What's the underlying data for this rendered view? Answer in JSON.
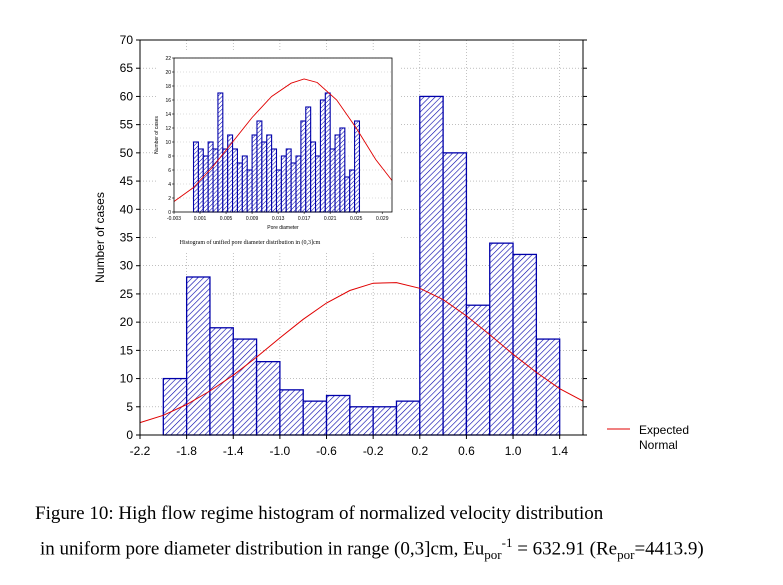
{
  "chart_data": [
    {
      "type": "bar",
      "role": "main-histogram",
      "x_tick_labels": [
        "-2.2",
        "-1.8",
        "-1.4",
        "-1.0",
        "-0.6",
        "-0.2",
        "0.2",
        "0.6",
        "1.0",
        "1.4"
      ],
      "x_ticks": [
        -2.2,
        -1.8,
        -1.4,
        -1.0,
        -0.6,
        -0.2,
        0.2,
        0.6,
        1.0,
        1.4
      ],
      "bin_edges": [
        -2.0,
        -1.8,
        -1.6,
        -1.4,
        -1.2,
        -1.0,
        -0.8,
        -0.6,
        -0.4,
        -0.2,
        0.0,
        0.2,
        0.4,
        0.6,
        0.8,
        1.0,
        1.2,
        1.4
      ],
      "values": [
        10,
        28,
        19,
        17,
        13,
        8,
        6,
        7,
        5,
        5,
        6,
        60,
        50,
        23,
        34,
        32,
        17
      ],
      "xlim": [
        -2.2,
        1.6
      ],
      "ylim": [
        0,
        70
      ],
      "y_ticks": [
        0,
        5,
        10,
        15,
        20,
        25,
        30,
        35,
        40,
        45,
        50,
        55,
        60,
        65,
        70
      ],
      "ylabel": "Number of cases",
      "grid": true,
      "normal_curve": {
        "x": [
          -2.2,
          -2.0,
          -1.8,
          -1.6,
          -1.4,
          -1.2,
          -1.0,
          -0.8,
          -0.6,
          -0.4,
          -0.2,
          0.0,
          0.2,
          0.4,
          0.6,
          0.8,
          1.0,
          1.2,
          1.4,
          1.6
        ],
        "y": [
          2.2,
          3.5,
          5.4,
          7.8,
          10.6,
          13.8,
          17.2,
          20.5,
          23.4,
          25.6,
          26.9,
          27.0,
          26.0,
          24.0,
          21.1,
          17.8,
          14.3,
          11.1,
          8.2,
          6.0
        ]
      },
      "legend": {
        "label_line1": "Expected",
        "label_line2": "Normal",
        "position": "right",
        "color": "#e00000"
      }
    },
    {
      "type": "bar",
      "role": "inset-histogram",
      "x_tick_labels": [
        "-0.003",
        "0.001",
        "0.005",
        "0.009",
        "0.013",
        "0.017",
        "0.021",
        "0.025",
        "0.029"
      ],
      "x_ticks": [
        -0.003,
        0.001,
        0.005,
        0.009,
        0.013,
        0.017,
        0.021,
        0.025,
        0.029
      ],
      "bin_start": 0.0,
      "bin_width": 0.00075,
      "values": [
        10,
        9,
        8,
        10,
        9,
        17,
        9,
        11,
        9,
        7,
        8,
        6,
        11,
        13,
        10,
        11,
        9,
        6,
        8,
        9,
        7,
        8,
        13,
        15,
        10,
        8,
        16,
        17,
        9,
        11,
        12,
        5,
        6,
        13
      ],
      "xlim": [
        -0.003,
        0.0305
      ],
      "ylim": [
        0,
        22
      ],
      "y_ticks": [
        0,
        2,
        4,
        6,
        8,
        10,
        12,
        14,
        16,
        18,
        20,
        22
      ],
      "ylabel": "Number of cases",
      "xlabel": "Pore diameter",
      "caption": "Histogram of unified pore diameter distribution in (0,3]cm",
      "normal_curve": {
        "x": [
          -0.003,
          0.0,
          0.003,
          0.006,
          0.009,
          0.012,
          0.015,
          0.017,
          0.019,
          0.022,
          0.025,
          0.028,
          0.0305
        ],
        "y": [
          1.5,
          3.5,
          6.5,
          10.0,
          13.5,
          16.5,
          18.4,
          19.0,
          18.5,
          16.0,
          12.0,
          7.5,
          4.5
        ]
      }
    }
  ],
  "caption": {
    "line1": "Figure   10:  High flow regime histogram of normalized velocity distribution",
    "line2_a": " in uniform pore diameter distribution in range (0,3]cm, Eu",
    "line2_sub1": "por",
    "line2_sup": "-1",
    "line2_b": " = 632.91  (Re",
    "line2_sub2": "por",
    "line2_c": "=4413.9)"
  },
  "colors": {
    "bar_stroke": "#0000aa",
    "curve": "#e00000",
    "grid": "#999999"
  }
}
